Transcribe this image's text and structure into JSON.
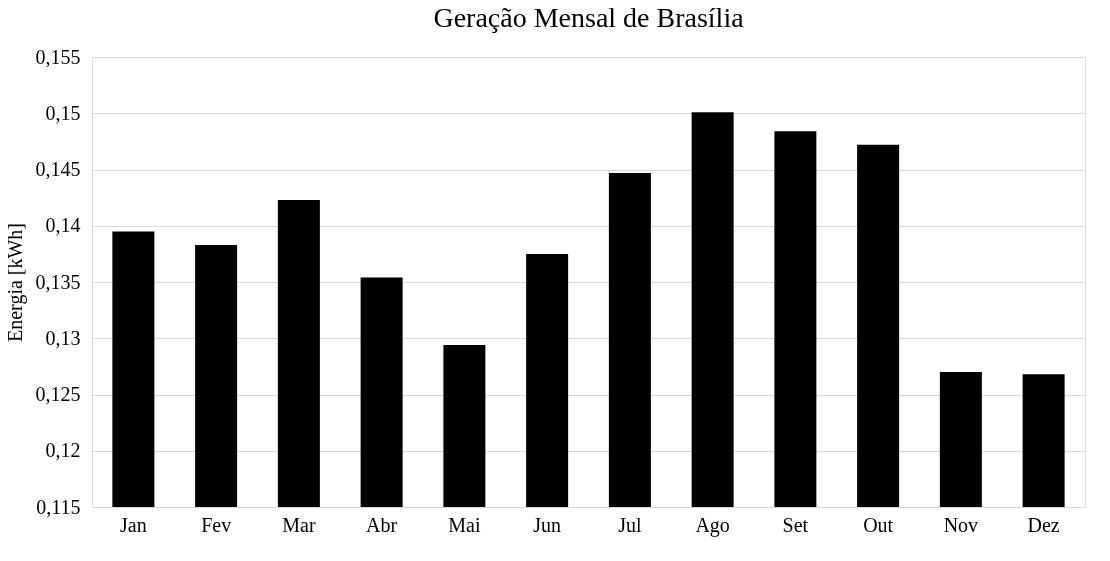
{
  "chart_data": {
    "type": "bar",
    "title": "Geração Mensal de Brasília",
    "ylabel": "Energia [kWh]",
    "categories": [
      "Jan",
      "Fev",
      "Mar",
      "Abr",
      "Mai",
      "Jun",
      "Jul",
      "Ago",
      "Set",
      "Out",
      "Nov",
      "Dez"
    ],
    "values": [
      0.1395,
      0.1383,
      0.1423,
      0.1354,
      0.1294,
      0.1375,
      0.1447,
      0.1501,
      0.1484,
      0.1472,
      0.127,
      0.1268
    ],
    "color": "#000000",
    "ylim": [
      0.115,
      0.155
    ],
    "yticks": [
      {
        "value": 0.115,
        "label": "0,115"
      },
      {
        "value": 0.12,
        "label": "0,12"
      },
      {
        "value": 0.125,
        "label": "0,125"
      },
      {
        "value": 0.13,
        "label": "0,13"
      },
      {
        "value": 0.135,
        "label": "0,135"
      },
      {
        "value": 0.14,
        "label": "0,14"
      },
      {
        "value": 0.145,
        "label": "0,145"
      },
      {
        "value": 0.15,
        "label": "0,15"
      },
      {
        "value": 0.155,
        "label": "0,155"
      }
    ],
    "grid": "y"
  }
}
